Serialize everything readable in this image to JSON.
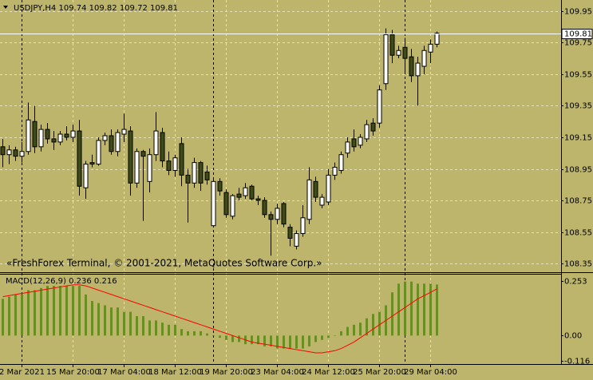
{
  "chart_data": [
    {
      "type": "candlestick",
      "title": "USDJPY,H4  109.74 109.82 109.72 109.81",
      "annotation": "«FreshForex Terminal, © 2001-2021, MetaQuotes Software Corp.»",
      "categories": [
        null,
        null,
        null,
        "2 Mar 2021",
        null,
        null,
        null,
        null,
        null,
        null,
        null,
        "15 Mar 20:00",
        null,
        null,
        null,
        null,
        null,
        null,
        null,
        "17 Mar 04:00",
        null,
        null,
        null,
        null,
        null,
        null,
        null,
        "18 Mar 12:00",
        null,
        null,
        null,
        null,
        null,
        null,
        null,
        "19 Mar 20:00",
        null,
        null,
        null,
        null,
        null,
        null,
        null,
        "23 Mar 04:00",
        null,
        null,
        null,
        null,
        null,
        null,
        null,
        "24 Mar 12:00",
        null,
        null,
        null,
        null,
        null,
        null,
        null,
        "25 Mar 20:00",
        null,
        null,
        null,
        null,
        null,
        null,
        null,
        "29 Mar 04:00",
        null
      ],
      "open": [
        109.09,
        109.04,
        109.07,
        109.03,
        109.06,
        109.25,
        109.09,
        109.2,
        109.14,
        109.12,
        109.17,
        109.15,
        109.19,
        108.83,
        108.99,
        108.98,
        109.13,
        109.16,
        109.06,
        109.17,
        109.19,
        108.86,
        109.06,
        108.87,
        109.04,
        109.18,
        109.0,
        108.94,
        109.11,
        108.91,
        108.86,
        108.99,
        108.93,
        108.59,
        108.87,
        108.8,
        108.65,
        108.79,
        108.78,
        108.84,
        108.76,
        108.75,
        108.66,
        108.63,
        108.73,
        108.58,
        108.46,
        108.54,
        108.63,
        108.87,
        108.72,
        108.74,
        108.91,
        108.94,
        109.05,
        109.14,
        109.1,
        109.14,
        109.24,
        109.24,
        109.49,
        109.8,
        109.67,
        109.72,
        109.66,
        109.54,
        109.6,
        109.69,
        109.74
      ],
      "high": [
        109.14,
        109.1,
        109.09,
        109.12,
        109.37,
        109.35,
        109.23,
        109.24,
        109.19,
        109.19,
        109.22,
        109.23,
        109.26,
        109.0,
        109.04,
        109.15,
        109.18,
        109.2,
        109.2,
        109.3,
        109.22,
        109.08,
        109.07,
        109.08,
        109.31,
        109.21,
        109.06,
        109.04,
        109.15,
        108.95,
        109.02,
        109.0,
        108.97,
        108.89,
        108.89,
        108.82,
        108.79,
        108.83,
        108.86,
        108.85,
        108.78,
        108.77,
        108.68,
        108.73,
        108.74,
        108.6,
        108.56,
        108.72,
        108.96,
        108.9,
        108.79,
        108.95,
        108.99,
        109.06,
        109.15,
        109.2,
        109.17,
        109.26,
        109.27,
        109.48,
        109.84,
        109.83,
        109.73,
        109.78,
        109.71,
        109.66,
        109.73,
        109.77,
        109.82
      ],
      "low": [
        108.96,
        108.98,
        109.0,
        108.99,
        109.04,
        109.05,
        109.06,
        109.11,
        109.07,
        109.1,
        109.13,
        109.12,
        108.78,
        108.76,
        108.96,
        108.97,
        109.1,
        109.04,
        109.03,
        109.12,
        108.78,
        108.83,
        108.62,
        108.8,
        109.0,
        108.96,
        108.91,
        108.9,
        108.84,
        108.61,
        108.83,
        108.81,
        108.85,
        108.58,
        108.78,
        108.64,
        108.63,
        108.75,
        108.76,
        108.75,
        108.72,
        108.64,
        108.4,
        108.6,
        108.58,
        108.46,
        108.44,
        108.52,
        108.6,
        108.74,
        108.7,
        108.72,
        108.88,
        108.92,
        109.02,
        109.06,
        109.08,
        109.12,
        109.16,
        109.21,
        109.45,
        109.62,
        109.65,
        109.55,
        109.5,
        109.35,
        109.55,
        109.62,
        109.72
      ],
      "close": [
        109.04,
        109.07,
        109.03,
        109.06,
        109.26,
        109.09,
        109.2,
        109.14,
        109.12,
        109.17,
        109.15,
        109.19,
        108.84,
        108.98,
        108.98,
        109.13,
        109.16,
        109.06,
        109.18,
        109.2,
        108.86,
        109.06,
        109.03,
        109.04,
        109.19,
        109.0,
        108.94,
        109.02,
        108.91,
        108.86,
        108.99,
        108.86,
        108.88,
        108.87,
        108.81,
        108.66,
        108.78,
        108.77,
        108.83,
        108.76,
        108.75,
        108.66,
        108.63,
        108.7,
        108.6,
        108.51,
        108.54,
        108.64,
        108.88,
        108.77,
        108.77,
        108.91,
        108.96,
        109.04,
        109.12,
        109.09,
        109.15,
        109.23,
        109.19,
        109.45,
        109.8,
        109.67,
        109.7,
        109.65,
        109.54,
        109.62,
        109.7,
        109.74,
        109.81
      ],
      "ylim": [
        108.3,
        110.02
      ],
      "yticks": [
        109.95,
        109.75,
        109.55,
        109.35,
        109.15,
        108.95,
        108.75,
        108.55,
        108.35
      ],
      "up_color": "#ffffff",
      "down_color": "#3f4c1a",
      "grid": true
    },
    {
      "type": "macd",
      "title": "MACD(12,26,9) 0.236 0.216",
      "histogram": [
        0.17,
        0.18,
        0.19,
        0.19,
        0.21,
        0.21,
        0.22,
        0.23,
        0.23,
        0.23,
        0.23,
        0.23,
        0.23,
        0.19,
        0.16,
        0.15,
        0.14,
        0.13,
        0.13,
        0.11,
        0.11,
        0.09,
        0.09,
        0.07,
        0.07,
        0.06,
        0.05,
        0.05,
        0.03,
        0.02,
        0.02,
        0.02,
        0.01,
        0,
        -0.01,
        -0.02,
        -0.03,
        -0.03,
        -0.04,
        -0.04,
        -0.04,
        -0.05,
        -0.05,
        -0.06,
        -0.06,
        -0.06,
        -0.06,
        -0.06,
        -0.05,
        -0.03,
        -0.02,
        -0.01,
        0,
        0.02,
        0.04,
        0.05,
        0.06,
        0.08,
        0.1,
        0.11,
        0.14,
        0.2,
        0.24,
        0.25,
        0.25,
        0.24,
        0.24,
        0.24,
        0.236
      ],
      "signal": [
        0.18,
        0.185,
        0.19,
        0.195,
        0.2,
        0.205,
        0.21,
        0.215,
        0.22,
        0.225,
        0.23,
        0.235,
        0.235,
        0.23,
        0.22,
        0.21,
        0.2,
        0.19,
        0.18,
        0.17,
        0.16,
        0.15,
        0.14,
        0.13,
        0.12,
        0.11,
        0.1,
        0.09,
        0.08,
        0.07,
        0.06,
        0.05,
        0.04,
        0.03,
        0.02,
        0.01,
        0,
        -0.01,
        -0.02,
        -0.03,
        -0.035,
        -0.04,
        -0.045,
        -0.05,
        -0.055,
        -0.06,
        -0.065,
        -0.07,
        -0.075,
        -0.08,
        -0.08,
        -0.075,
        -0.07,
        -0.06,
        -0.045,
        -0.03,
        -0.01,
        0.01,
        0.03,
        0.05,
        0.07,
        0.09,
        0.11,
        0.13,
        0.15,
        0.17,
        0.185,
        0.2,
        0.216
      ],
      "histogram_color": "#6b8e23",
      "signal_color": "#ff0000",
      "ylim": [
        -0.128,
        0.282
      ],
      "yticks": [
        0.253,
        {
          "value": 0,
          "label": "0.00"
        },
        -0.116
      ]
    }
  ]
}
